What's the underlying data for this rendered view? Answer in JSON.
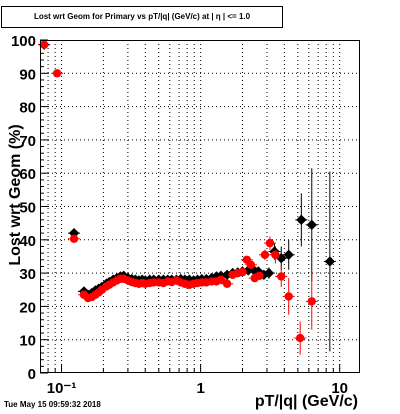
{
  "title": "Lost wrt Geom for Primary vs pT/|q| (GeV/c) at | η | <= 1.0",
  "timestamp": "Tue May 15 09:59:32 2018",
  "colors": {
    "series_black": "#000000",
    "series_red": "#ff0000",
    "grid": "#000000"
  },
  "chart_data": {
    "type": "scatter",
    "title": "Lost wrt Geom for Primary vs pT/|q| (GeV/c) at | η | <= 1.0",
    "xlabel": "pT/|q| (GeV/c)",
    "ylabel": "Lost wrt Geom (%)",
    "xscale": "log",
    "xlim": [
      0.07,
      14
    ],
    "ylim": [
      0,
      100
    ],
    "grid": true,
    "legend": "none",
    "xtick_labels": [
      "10⁻¹",
      "1",
      "10"
    ],
    "xtick_values": [
      0.1,
      1,
      10
    ],
    "ytick_values": [
      0,
      10,
      20,
      30,
      40,
      50,
      60,
      70,
      80,
      90,
      100
    ],
    "series": [
      {
        "color": "#000000",
        "points": [
          [
            0.075,
            98.6,
            0.5
          ],
          [
            0.123,
            42,
            0.6
          ],
          [
            0.145,
            24.5,
            0.4
          ],
          [
            0.155,
            23.5,
            0.4
          ],
          [
            0.165,
            24,
            0.4
          ],
          [
            0.175,
            24.8,
            0.4
          ],
          [
            0.185,
            25.3,
            0.4
          ],
          [
            0.195,
            25.8,
            0.4
          ],
          [
            0.21,
            26.8,
            0.4
          ],
          [
            0.22,
            27.3,
            0.4
          ],
          [
            0.235,
            28,
            0.4
          ],
          [
            0.25,
            28.5,
            0.4
          ],
          [
            0.265,
            29,
            0.4
          ],
          [
            0.28,
            29.2,
            0.4
          ],
          [
            0.3,
            28.5,
            0.4
          ],
          [
            0.32,
            28.2,
            0.4
          ],
          [
            0.34,
            28,
            0.4
          ],
          [
            0.36,
            27.8,
            0.4
          ],
          [
            0.38,
            28,
            0.4
          ],
          [
            0.4,
            27.8,
            0.4
          ],
          [
            0.43,
            28,
            0.4
          ],
          [
            0.46,
            28,
            0.4
          ],
          [
            0.5,
            28,
            0.4
          ],
          [
            0.54,
            28,
            0.4
          ],
          [
            0.58,
            28,
            0.4
          ],
          [
            0.62,
            28,
            0.4
          ],
          [
            0.67,
            28,
            0.4
          ],
          [
            0.72,
            28.2,
            0.4
          ],
          [
            0.77,
            28,
            0.4
          ],
          [
            0.83,
            28,
            0.4
          ],
          [
            0.89,
            27.8,
            0.4
          ],
          [
            0.95,
            28,
            0.4
          ],
          [
            1.02,
            28.2,
            0.4
          ],
          [
            1.1,
            28.2,
            0.5
          ],
          [
            1.2,
            28.5,
            0.5
          ],
          [
            1.3,
            29,
            0.5
          ],
          [
            1.4,
            29.2,
            0.5
          ],
          [
            1.55,
            29.5,
            0.6
          ],
          [
            1.7,
            30,
            0.6
          ],
          [
            1.85,
            30.2,
            0.7
          ],
          [
            2.0,
            30.5,
            0.8
          ],
          [
            2.2,
            30.8,
            0.9
          ],
          [
            2.4,
            31,
            1.0
          ],
          [
            2.6,
            30.5,
            1.2
          ],
          [
            2.85,
            29.5,
            1.4
          ],
          [
            3.1,
            30,
            1.7
          ],
          [
            3.4,
            36.5,
            2.5
          ],
          [
            3.8,
            34.5,
            3.5
          ],
          [
            4.3,
            35.5,
            4.5
          ],
          [
            5.3,
            46,
            8
          ],
          [
            6.3,
            44.5,
            17
          ],
          [
            8.5,
            33.5,
            27
          ]
        ]
      },
      {
        "color": "#ff0000",
        "points": [
          [
            0.075,
            98.6,
            0.5
          ],
          [
            0.093,
            90,
            0.5
          ],
          [
            0.123,
            40.3,
            0.6
          ],
          [
            0.145,
            23.5,
            0.4
          ],
          [
            0.155,
            22.5,
            0.4
          ],
          [
            0.165,
            22.8,
            0.4
          ],
          [
            0.175,
            23.5,
            0.4
          ],
          [
            0.185,
            24.2,
            0.4
          ],
          [
            0.195,
            25,
            0.4
          ],
          [
            0.21,
            26,
            0.4
          ],
          [
            0.22,
            26.5,
            0.4
          ],
          [
            0.235,
            27.2,
            0.4
          ],
          [
            0.25,
            27.8,
            0.4
          ],
          [
            0.265,
            28.3,
            0.4
          ],
          [
            0.28,
            28.3,
            0.4
          ],
          [
            0.3,
            27.8,
            0.4
          ],
          [
            0.32,
            27.3,
            0.4
          ],
          [
            0.34,
            27,
            0.4
          ],
          [
            0.36,
            26.8,
            0.4
          ],
          [
            0.38,
            27,
            0.4
          ],
          [
            0.4,
            26.8,
            0.4
          ],
          [
            0.43,
            27,
            0.4
          ],
          [
            0.46,
            27.2,
            0.4
          ],
          [
            0.5,
            27.2,
            0.4
          ],
          [
            0.54,
            27,
            0.4
          ],
          [
            0.58,
            27.5,
            0.4
          ],
          [
            0.62,
            27.3,
            0.4
          ],
          [
            0.67,
            27.8,
            0.4
          ],
          [
            0.72,
            27.2,
            0.4
          ],
          [
            0.77,
            26.8,
            0.4
          ],
          [
            0.83,
            26.5,
            0.4
          ],
          [
            0.89,
            26.8,
            0.4
          ],
          [
            0.95,
            27,
            0.4
          ],
          [
            1.02,
            27.2,
            0.4
          ],
          [
            1.1,
            27.2,
            0.5
          ],
          [
            1.2,
            27.5,
            0.5
          ],
          [
            1.3,
            27.5,
            0.5
          ],
          [
            1.4,
            28,
            0.5
          ],
          [
            1.55,
            26.8,
            0.6
          ],
          [
            1.7,
            29.5,
            0.6
          ],
          [
            1.85,
            30,
            0.7
          ],
          [
            2.0,
            30.3,
            0.8
          ],
          [
            2.15,
            34,
            0.9
          ],
          [
            2.3,
            32.5,
            1.0
          ],
          [
            2.45,
            28.5,
            1.1
          ],
          [
            2.65,
            29.2,
            1.3
          ],
          [
            2.9,
            35.5,
            1.6
          ],
          [
            3.15,
            39,
            2.0
          ],
          [
            3.45,
            35.5,
            2.6
          ],
          [
            3.8,
            29,
            3.2
          ],
          [
            4.3,
            23,
            5.5
          ],
          [
            5.2,
            10.5,
            5
          ],
          [
            6.3,
            21.5,
            8.5
          ]
        ]
      }
    ]
  }
}
